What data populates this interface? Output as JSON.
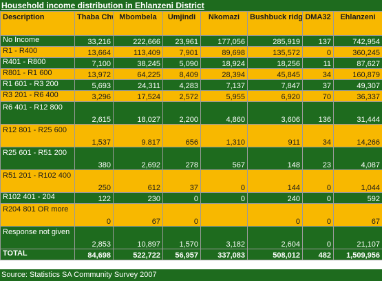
{
  "title": "Household income distribution in Ehlanzeni District",
  "headers": [
    "Description",
    "Thaba Chweu",
    "Mbombela",
    "Umjindi",
    "Nkomazi",
    "Bushbuck ridge",
    "DMA32",
    "Ehlanzeni"
  ],
  "rows": [
    {
      "label": "No Income",
      "values": [
        "33,216",
        "222,666",
        "23,961",
        "177,056",
        "285,919",
        "137",
        "742,954"
      ]
    },
    {
      "label": "R1 - R400",
      "values": [
        "13,664",
        "113,409",
        "7,901",
        "89,698",
        "135,572",
        "0",
        "360,245"
      ]
    },
    {
      "label": "R401 - R800",
      "values": [
        "7,100",
        "38,245",
        "5,090",
        "18,924",
        "18,256",
        "11",
        "87,627"
      ]
    },
    {
      "label": "R801 - R1 600",
      "values": [
        "13,972",
        "64,225",
        "8,409",
        "28,394",
        "45,845",
        "34",
        "160,879"
      ]
    },
    {
      "label": "R1 601 - R3 200",
      "values": [
        "5,693",
        "24,311",
        "4,283",
        "7,137",
        "7,847",
        "37",
        "49,307"
      ]
    },
    {
      "label": "R3 201 - R6 400",
      "values": [
        "3,296",
        "17,524",
        "2,572",
        "5,955",
        "6,920",
        "70",
        "36,337"
      ]
    },
    {
      "label": "R6 401 - R12 800",
      "values": [
        "2,615",
        "18,027",
        "2,200",
        "4,860",
        "3,606",
        "136",
        "31,444"
      ]
    },
    {
      "label": "R12 801 - R25 600",
      "values": [
        "1,537",
        "9.817",
        "656",
        "1,310",
        "911",
        "34",
        "14,266"
      ]
    },
    {
      "label": "R25 601 - R51 200",
      "values": [
        "380",
        "2,692",
        "278",
        "567",
        "148",
        "23",
        "4,087"
      ]
    },
    {
      "label": "R51 201 - R102 400",
      "values": [
        "250",
        "612",
        "37",
        "0",
        "144",
        "0",
        "1,044"
      ]
    },
    {
      "label": "R102 401 - 204",
      "values": [
        "122",
        "230",
        "0",
        "0",
        "240",
        "0",
        "592"
      ]
    },
    {
      "label": "R204 801 OR more",
      "values": [
        "0",
        "67",
        "0",
        "",
        "0",
        "0",
        "67"
      ]
    },
    {
      "label": "Response not given",
      "values": [
        "2,853",
        "10,897",
        "1,570",
        "3,182",
        "2,604",
        "0",
        "21,107"
      ]
    }
  ],
  "total": {
    "label": "TOTAL",
    "values": [
      "84,698",
      "522,722",
      "56,957",
      "337,083",
      "508,012",
      "482",
      "1,509,956"
    ]
  },
  "source": "Source: Statistics SA Community Survey 2007"
}
